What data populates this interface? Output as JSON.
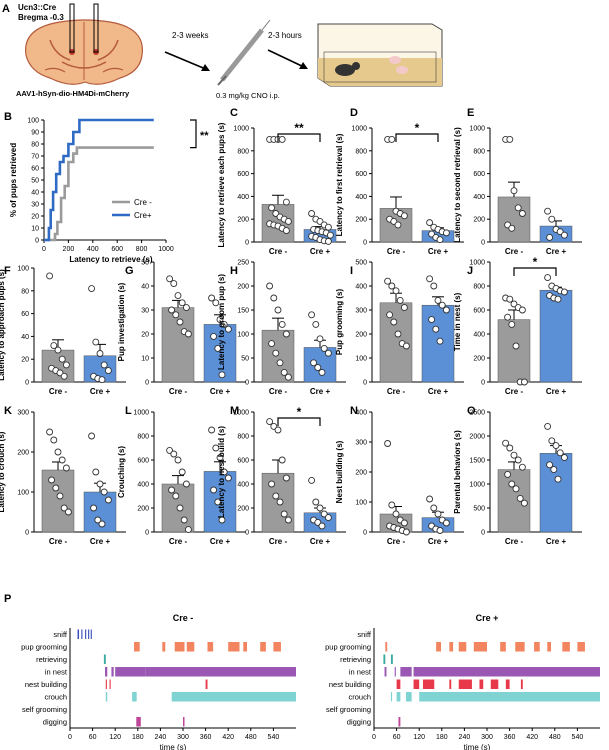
{
  "colors": {
    "cre_minus": "#9b9b9b",
    "cre_plus": "#5b8fd6",
    "line_plus": "#2f6bc4",
    "brain": "#f1b98a",
    "brain_dark": "#b45a3c",
    "sniff": "#3b4fb8",
    "pup_grooming": "#f2855f",
    "retrieving": "#3aa99f",
    "in_nest": "#9a58b4",
    "nest_building": "#e8394b",
    "crouch": "#7fd3d3",
    "selfgrooming": "#9fa6e8",
    "digging": "#c0469a"
  },
  "panel_a": {
    "letter": "A",
    "line1": "Ucn3::Cre",
    "line2": "Bregma -0.3",
    "virus": "AAV1-hSyn-dio-HM4Di-mCherry",
    "arrow1": "2-3 weeks",
    "arrow2": "2-3 hours",
    "dose": "0.3 mg/kg CNO i.p."
  },
  "panel_b": {
    "letter": "B",
    "ylabel": "% of pups retrieved",
    "xlabel": "Latency to retrieve (s)",
    "yticks": [
      "0",
      "10",
      "20",
      "30",
      "40",
      "50",
      "60",
      "70",
      "80",
      "90",
      "100"
    ],
    "xticks": [
      "0",
      "200",
      "400",
      "600",
      "800",
      "1000"
    ],
    "sig": "**",
    "legend": [
      "Cre -",
      "Cre+"
    ]
  },
  "chart_data": [
    {
      "type": "line",
      "panel": "B",
      "title": "",
      "xlabel": "Latency to retrieve (s)",
      "ylabel": "% of pups retrieved",
      "xlim": [
        0,
        1000
      ],
      "ylim": [
        0,
        100
      ],
      "series": [
        {
          "name": "Cre -",
          "points": [
            [
              0,
              0
            ],
            [
              90,
              0
            ],
            [
              90,
              5
            ],
            [
              110,
              5
            ],
            [
              110,
              15
            ],
            [
              140,
              15
            ],
            [
              140,
              35
            ],
            [
              170,
              35
            ],
            [
              170,
              45
            ],
            [
              200,
              45
            ],
            [
              200,
              65
            ],
            [
              240,
              65
            ],
            [
              240,
              72
            ],
            [
              270,
              72
            ],
            [
              270,
              77
            ],
            [
              900,
              77
            ]
          ]
        },
        {
          "name": "Cre+",
          "points": [
            [
              0,
              0
            ],
            [
              40,
              0
            ],
            [
              40,
              10
            ],
            [
              55,
              10
            ],
            [
              55,
              25
            ],
            [
              75,
              25
            ],
            [
              75,
              40
            ],
            [
              100,
              40
            ],
            [
              100,
              55
            ],
            [
              130,
              55
            ],
            [
              130,
              65
            ],
            [
              160,
              65
            ],
            [
              160,
              70
            ],
            [
              200,
              70
            ],
            [
              200,
              80
            ],
            [
              240,
              80
            ],
            [
              240,
              90
            ],
            [
              290,
              90
            ],
            [
              290,
              100
            ],
            [
              900,
              100
            ]
          ]
        }
      ]
    },
    {
      "type": "bar",
      "panel": "C",
      "letter": "C",
      "ylabel": "Latency to retrieve each pups (s)",
      "categories": [
        "Cre -",
        "Cre +"
      ],
      "values": [
        330,
        110
      ],
      "errors": [
        80,
        25
      ],
      "ylim": [
        0,
        1000
      ],
      "yticks": [
        "0",
        "200",
        "400",
        "600",
        "800",
        "1000"
      ],
      "sig": "**",
      "points": [
        [
          900,
          900,
          900,
          900,
          350,
          300,
          250,
          220,
          200,
          180,
          160,
          150,
          140,
          120,
          100
        ],
        [
          250,
          200,
          180,
          150,
          130,
          110,
          100,
          90,
          80,
          60,
          50,
          40,
          20,
          10,
          5
        ]
      ]
    },
    {
      "type": "bar",
      "panel": "D",
      "letter": "D",
      "ylabel": "Latency to first retrieval (s)",
      "categories": [
        "Cre -",
        "Cre +"
      ],
      "values": [
        295,
        100
      ],
      "errors": [
        100,
        25
      ],
      "ylim": [
        0,
        1000
      ],
      "yticks": [
        "0",
        "200",
        "400",
        "600",
        "800",
        "1000"
      ],
      "sig": "*",
      "points": [
        [
          900,
          900,
          270,
          250,
          230,
          200,
          180,
          150
        ],
        [
          170,
          130,
          110,
          90,
          80,
          70,
          40,
          20
        ]
      ]
    },
    {
      "type": "bar",
      "panel": "E",
      "letter": "E",
      "ylabel": "Latency to second retrieval (s)",
      "categories": [
        "Cre -",
        "Cre +"
      ],
      "values": [
        395,
        140
      ],
      "errors": [
        130,
        45
      ],
      "ylim": [
        0,
        1000
      ],
      "yticks": [
        "0",
        "200",
        "400",
        "600",
        "800",
        "1000"
      ],
      "sig": "",
      "points": [
        [
          900,
          900,
          450,
          300,
          250,
          150,
          120
        ],
        [
          270,
          200,
          110,
          90,
          60,
          40
        ]
      ]
    },
    {
      "type": "bar",
      "panel": "F",
      "letter": "F",
      "ylabel": "Latency to approach pups (s)",
      "categories": [
        "Cre -",
        "Cre +"
      ],
      "values": [
        28,
        23
      ],
      "errors": [
        9,
        10
      ],
      "ylim": [
        0,
        100
      ],
      "yticks": [
        "0",
        "20",
        "40",
        "60",
        "80",
        "100"
      ],
      "sig": "",
      "points": [
        [
          93,
          32,
          28,
          20,
          15,
          12,
          10,
          8,
          5
        ],
        [
          82,
          35,
          25,
          15,
          10,
          5,
          3,
          2
        ]
      ]
    },
    {
      "type": "bar",
      "panel": "G",
      "letter": "G",
      "ylabel": "Pup investigation (s)",
      "categories": [
        "Cre -",
        "Cre +"
      ],
      "values": [
        31,
        24
      ],
      "errors": [
        3,
        4
      ],
      "ylim": [
        0,
        50
      ],
      "yticks": [
        "0",
        "10",
        "20",
        "30",
        "40",
        "50"
      ],
      "sig": "",
      "points": [
        [
          43,
          41,
          36,
          33,
          31,
          30,
          28,
          25,
          21,
          20
        ],
        [
          35,
          33,
          26,
          24,
          22,
          19,
          14,
          3
        ]
      ]
    },
    {
      "type": "bar",
      "panel": "H",
      "letter": "H",
      "ylabel": "Latency to groom pup (s)",
      "categories": [
        "Cre -",
        "Cre +"
      ],
      "values": [
        108,
        72
      ],
      "errors": [
        25,
        15
      ],
      "ylim": [
        0,
        250
      ],
      "yticks": [
        "0",
        "50",
        "100",
        "150",
        "200",
        "250"
      ],
      "sig": "",
      "points": [
        [
          200,
          175,
          150,
          120,
          100,
          80,
          60,
          40,
          20,
          10
        ],
        [
          140,
          120,
          90,
          70,
          60,
          40,
          30,
          20
        ]
      ]
    },
    {
      "type": "bar",
      "panel": "I",
      "letter": "I",
      "ylabel": "Pup grooming (s)",
      "categories": [
        "Cre -",
        "Cre +"
      ],
      "values": [
        330,
        320
      ],
      "errors": [
        40,
        35
      ],
      "ylim": [
        0,
        500
      ],
      "yticks": [
        "0",
        "100",
        "200",
        "300",
        "400",
        "500"
      ],
      "sig": "",
      "points": [
        [
          420,
          400,
          380,
          340,
          310,
          280,
          250,
          200,
          160,
          150
        ],
        [
          430,
          400,
          340,
          320,
          300,
          260,
          220,
          170
        ]
      ]
    },
    {
      "type": "bar",
      "panel": "J",
      "letter": "J",
      "ylabel": "Time in nest (s)",
      "categories": [
        "Cre -",
        "Cre +"
      ],
      "values": [
        520,
        765
      ],
      "errors": [
        80,
        25
      ],
      "ylim": [
        0,
        1000
      ],
      "yticks": [
        "0",
        "200",
        "400",
        "600",
        "800",
        "1000"
      ],
      "sig": "*",
      "points": [
        [
          700,
          690,
          650,
          620,
          600,
          540,
          480,
          300,
          0,
          0
        ],
        [
          870,
          800,
          780,
          760,
          750,
          720,
          700,
          690
        ]
      ]
    },
    {
      "type": "bar",
      "panel": "K",
      "letter": "K",
      "ylabel": "Latency to crouch (s)",
      "categories": [
        "Cre -",
        "Cre +"
      ],
      "values": [
        155,
        100
      ],
      "errors": [
        20,
        22
      ],
      "ylim": [
        0,
        300
      ],
      "yticks": [
        "0",
        "100",
        "200",
        "300"
      ],
      "sig": "",
      "points": [
        [
          250,
          230,
          200,
          180,
          160,
          130,
          110,
          90,
          60,
          50
        ],
        [
          240,
          150,
          120,
          100,
          80,
          60,
          30,
          20
        ]
      ]
    },
    {
      "type": "bar",
      "panel": "L",
      "letter": "L",
      "ylabel": "Crouching (s)",
      "categories": [
        "Cre -",
        "Cre +"
      ],
      "values": [
        400,
        505
      ],
      "errors": [
        70,
        80
      ],
      "ylim": [
        0,
        1000
      ],
      "yticks": [
        "0",
        "200",
        "400",
        "600",
        "800",
        "1000"
      ],
      "sig": "",
      "points": [
        [
          680,
          650,
          600,
          500,
          400,
          350,
          300,
          200,
          100,
          20
        ],
        [
          850,
          700,
          620,
          500,
          450,
          350,
          250,
          100
        ]
      ]
    },
    {
      "type": "bar",
      "panel": "M",
      "letter": "M",
      "ylabel": "Latency to nest build (s)",
      "categories": [
        "Cre -",
        "Cre +"
      ],
      "values": [
        490,
        160
      ],
      "errors": [
        110,
        40
      ],
      "ylim": [
        0,
        1000
      ],
      "yticks": [
        "0",
        "200",
        "400",
        "600",
        "800",
        "1000"
      ],
      "sig": "*",
      "points": [
        [
          920,
          880,
          850,
          600,
          450,
          400,
          300,
          250,
          150,
          100
        ],
        [
          430,
          250,
          200,
          150,
          120,
          100,
          80,
          50
        ]
      ]
    },
    {
      "type": "bar",
      "panel": "N",
      "letter": "N",
      "ylabel": "Nest building (s)",
      "categories": [
        "Cre -",
        "Cre +"
      ],
      "values": [
        60,
        48
      ],
      "errors": [
        25,
        18
      ],
      "ylim": [
        0,
        400
      ],
      "yticks": [
        "0",
        "100",
        "200",
        "300",
        "400"
      ],
      "sig": "",
      "points": [
        [
          295,
          90,
          60,
          40,
          30,
          20,
          15,
          10,
          5,
          0
        ],
        [
          110,
          80,
          60,
          40,
          30,
          20,
          10,
          5
        ]
      ]
    },
    {
      "type": "bar",
      "panel": "O",
      "letter": "O",
      "ylabel": "Parental behaviors (s)",
      "categories": [
        "Cre -",
        "Cre +"
      ],
      "values": [
        1300,
        1640
      ],
      "errors": [
        160,
        160
      ],
      "ylim": [
        0,
        2500
      ],
      "yticks": [
        "0",
        "500",
        "1000",
        "1500",
        "2000",
        "2500"
      ],
      "sig": "",
      "points": [
        [
          1850,
          1750,
          1600,
          1500,
          1350,
          1200,
          1000,
          900,
          700,
          600
        ],
        [
          2200,
          1900,
          1800,
          1650,
          1550,
          1400,
          1300,
          1100
        ]
      ]
    },
    {
      "type": "ethogram",
      "panel": "P",
      "letter": "P",
      "xlabel": "time (s)",
      "xticks": [
        "0",
        "60",
        "120",
        "180",
        "240",
        "300",
        "360",
        "420",
        "480",
        "540"
      ],
      "behaviors": [
        "sniff",
        "pup grooming",
        "retrieving",
        "in nest",
        "nest building",
        "crouch",
        "self grooming",
        "digging"
      ],
      "groups": [
        {
          "title": "Cre -",
          "events": {
            "sniff": [
              [
                20,
                24
              ],
              [
                30,
                33
              ],
              [
                40,
                43
              ],
              [
                48,
                51
              ],
              [
                55,
                58
              ]
            ],
            "pup grooming": [
              [
                170,
                185
              ],
              [
                245,
                253
              ],
              [
                278,
                304
              ],
              [
                310,
                330
              ],
              [
                365,
                380
              ],
              [
                420,
                450
              ],
              [
                460,
                470
              ],
              [
                505,
                520
              ],
              [
                540,
                560
              ]
            ],
            "retrieving": [
              [
                90,
                95
              ]
            ],
            "in nest": [
              [
                93,
                99
              ],
              [
                110,
                116
              ],
              [
                120,
                200
              ],
              [
                200,
                600
              ]
            ],
            "nest building": [
              [
                95,
                98
              ],
              [
                105,
                108
              ],
              [
                360,
                365
              ]
            ],
            "crouch": [
              [
                95,
                99
              ],
              [
                165,
                177
              ],
              [
                270,
                600
              ]
            ],
            "self grooming": [],
            "digging": [
              [
                176,
                188
              ],
              [
                300,
                304
              ]
            ]
          }
        },
        {
          "title": "Cre +",
          "events": {
            "sniff": [],
            "pup grooming": [
              [
                30,
                35
              ],
              [
                165,
                178
              ],
              [
                200,
                210
              ],
              [
                225,
                245
              ],
              [
                265,
                300
              ],
              [
                335,
                350
              ],
              [
                375,
                400
              ],
              [
                425,
                440
              ],
              [
                460,
                470
              ],
              [
                500,
                520
              ],
              [
                540,
                560
              ]
            ],
            "retrieving": [
              [
                25,
                30
              ],
              [
                45,
                50
              ]
            ],
            "in nest": [
              [
                28,
                33
              ],
              [
                55,
                58
              ],
              [
                70,
                100
              ],
              [
                105,
                600
              ]
            ],
            "nest building": [
              [
                60,
                70
              ],
              [
                105,
                120
              ],
              [
                130,
                160
              ],
              [
                200,
                205
              ],
              [
                225,
                260
              ],
              [
                280,
                290
              ],
              [
                310,
                330
              ],
              [
                350,
                360
              ],
              [
                390,
                395
              ]
            ],
            "crouch": [
              [
                45,
                48
              ],
              [
                60,
                70
              ],
              [
                85,
                100
              ],
              [
                120,
                600
              ]
            ],
            "self grooming": [],
            "digging": [
              [
                65,
                70
              ]
            ]
          }
        }
      ]
    }
  ]
}
